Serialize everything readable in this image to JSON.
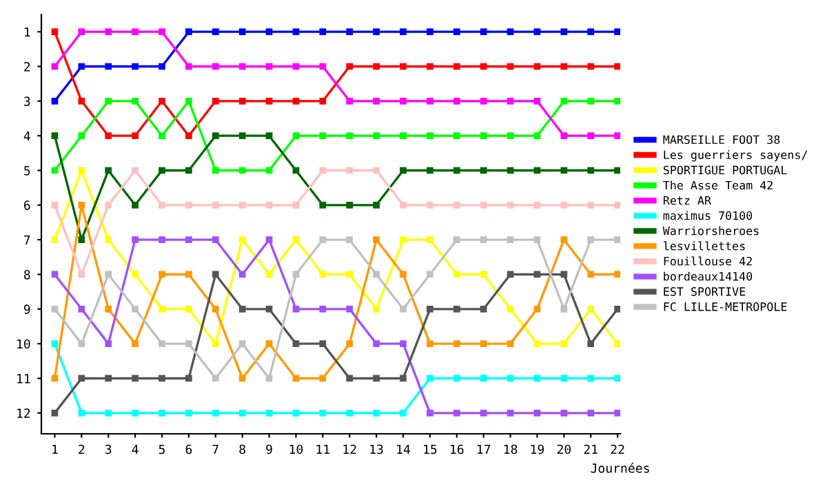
{
  "chart_data": {
    "type": "line",
    "xlabel": "Journées",
    "x": [
      1,
      2,
      3,
      4,
      5,
      6,
      7,
      8,
      9,
      10,
      11,
      12,
      13,
      14,
      15,
      16,
      17,
      18,
      19,
      20,
      21,
      22
    ],
    "xlim": [
      0.5,
      22.1
    ],
    "xticks": [
      1,
      2,
      3,
      4,
      5,
      6,
      7,
      8,
      9,
      10,
      11,
      12,
      13,
      14,
      15,
      16,
      17,
      18,
      19,
      20,
      21,
      22
    ],
    "ylim": [
      12.6,
      0.5
    ],
    "yticks": [
      1,
      2,
      3,
      4,
      5,
      6,
      7,
      8,
      9,
      10,
      11,
      12
    ],
    "grid": false,
    "legend": "right",
    "marker": "square",
    "line_style": "solid",
    "series": [
      {
        "name": "MARSEILLE FOOT 38",
        "color": "#0000ff",
        "values": [
          3,
          2,
          2,
          2,
          2,
          1,
          1,
          1,
          1,
          1,
          1,
          1,
          1,
          1,
          1,
          1,
          1,
          1,
          1,
          1,
          1,
          1
        ]
      },
      {
        "name": "Les guerriers sayens/",
        "color": "#ff0000",
        "values": [
          1,
          3,
          4,
          4,
          3,
          4,
          3,
          3,
          3,
          3,
          3,
          2,
          2,
          2,
          2,
          2,
          2,
          2,
          2,
          2,
          2,
          2
        ]
      },
      {
        "name": "SPORTIGUE PORTUGAL",
        "color": "#ffff00",
        "values": [
          7,
          5,
          7,
          8,
          9,
          9,
          10,
          7,
          8,
          7,
          8,
          8,
          9,
          7,
          7,
          8,
          8,
          9,
          10,
          10,
          9,
          10
        ]
      },
      {
        "name": "The Asse Team 42",
        "color": "#00ff00",
        "values": [
          5,
          4,
          3,
          3,
          4,
          3,
          5,
          5,
          5,
          4,
          4,
          4,
          4,
          4,
          4,
          4,
          4,
          4,
          4,
          3,
          3,
          3
        ]
      },
      {
        "name": "Retz AR",
        "color": "#ff00ff",
        "values": [
          2,
          1,
          1,
          1,
          1,
          2,
          2,
          2,
          2,
          2,
          2,
          3,
          3,
          3,
          3,
          3,
          3,
          3,
          3,
          4,
          4,
          4
        ]
      },
      {
        "name": "maximus 70100",
        "color": "#00ffff",
        "values": [
          10,
          12,
          12,
          12,
          12,
          12,
          12,
          12,
          12,
          12,
          12,
          12,
          12,
          12,
          11,
          11,
          11,
          11,
          11,
          11,
          11,
          11
        ]
      },
      {
        "name": "Warriorsheroes",
        "color": "#006600",
        "values": [
          4,
          7,
          5,
          6,
          5,
          5,
          4,
          4,
          4,
          5,
          6,
          6,
          6,
          5,
          5,
          5,
          5,
          5,
          5,
          5,
          5,
          5
        ]
      },
      {
        "name": "lesvillettes",
        "color": "#ff9900",
        "values": [
          11,
          6,
          9,
          10,
          8,
          8,
          9,
          11,
          10,
          11,
          11,
          10,
          7,
          8,
          10,
          10,
          10,
          10,
          9,
          7,
          8,
          8
        ]
      },
      {
        "name": "Fouillouse 42",
        "color": "#ffc0c0",
        "values": [
          6,
          8,
          6,
          5,
          6,
          6,
          6,
          6,
          6,
          6,
          5,
          5,
          5,
          6,
          6,
          6,
          6,
          6,
          6,
          6,
          6,
          6
        ]
      },
      {
        "name": "bordeaux14140",
        "color": "#a050ff",
        "values": [
          8,
          9,
          10,
          7,
          7,
          7,
          7,
          8,
          7,
          9,
          9,
          9,
          10,
          10,
          12,
          12,
          12,
          12,
          12,
          12,
          12,
          12
        ]
      },
      {
        "name": "EST SPORTIVE",
        "color": "#555555",
        "values": [
          12,
          11,
          11,
          11,
          11,
          11,
          8,
          9,
          9,
          10,
          10,
          11,
          11,
          11,
          9,
          9,
          9,
          8,
          8,
          8,
          10,
          9
        ]
      },
      {
        "name": "FC LILLE-METROPOLE",
        "color": "#c0c0c0",
        "values": [
          9,
          10,
          8,
          9,
          10,
          10,
          11,
          10,
          11,
          8,
          7,
          7,
          8,
          9,
          8,
          7,
          7,
          7,
          7,
          9,
          7,
          7
        ]
      }
    ]
  }
}
